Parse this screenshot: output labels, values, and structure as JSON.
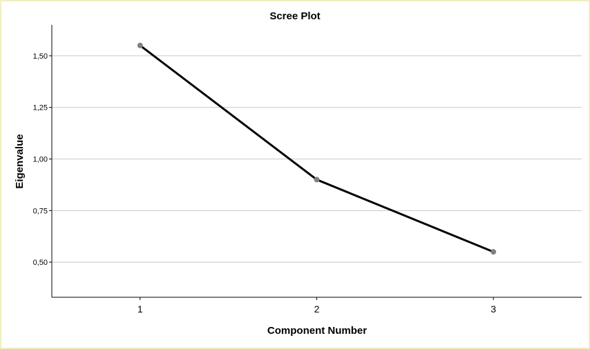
{
  "chart_data": {
    "type": "line",
    "title": "Scree Plot",
    "xlabel": "Component Number",
    "ylabel": "Eigenvalue",
    "categories": [
      "1",
      "2",
      "3"
    ],
    "values": [
      1.55,
      0.9,
      0.55
    ],
    "ylim": [
      0.33,
      1.65
    ],
    "yticks": [
      0.5,
      0.75,
      1.0,
      1.25,
      1.5
    ],
    "ytick_labels": [
      "0,50",
      "0,75",
      "1,00",
      "1,25",
      "1,50"
    ],
    "grid": true,
    "line_color": "#000000",
    "marker_color": "#808080"
  }
}
